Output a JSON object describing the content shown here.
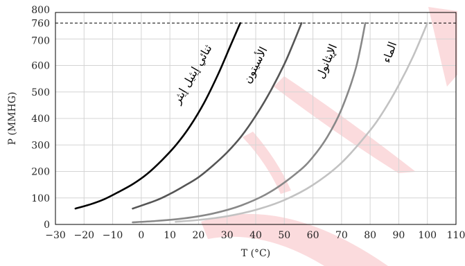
{
  "chart_data": {
    "type": "line",
    "title": "",
    "xlabel": "T (°C)",
    "ylabel": "P (MMHG)",
    "xlim": [
      -30,
      110
    ],
    "ylim": [
      0,
      800
    ],
    "x_ticks": [
      -30,
      -20,
      -10,
      0,
      10,
      20,
      30,
      40,
      50,
      60,
      70,
      80,
      90,
      100,
      110
    ],
    "y_ticks": [
      0,
      100,
      200,
      300,
      400,
      500,
      600,
      700,
      760,
      800
    ],
    "grid": true,
    "reference_line": {
      "y": 760,
      "style": "dashed"
    },
    "series": [
      {
        "name": "ثنائي إيثيل إيثر",
        "color": "#000000",
        "x": [
          -23,
          -18,
          -13,
          -8,
          -3,
          2,
          7,
          12,
          17,
          22,
          27,
          31,
          34.6
        ],
        "y": [
          60,
          75,
          95,
          122,
          152,
          190,
          240,
          298,
          370,
          460,
          570,
          670,
          760
        ]
      },
      {
        "name": "الأسيتون",
        "color": "#555555",
        "x": [
          -3,
          5,
          10,
          15,
          20,
          25,
          30,
          35,
          40,
          45,
          50,
          53,
          56
        ],
        "y": [
          60,
          90,
          115,
          145,
          178,
          222,
          272,
          333,
          410,
          500,
          605,
          680,
          760
        ]
      },
      {
        "name": "الإيثانول",
        "color": "#888888",
        "x": [
          -3,
          5,
          15,
          25,
          35,
          45,
          55,
          60,
          65,
          70,
          75,
          78.3
        ],
        "y": [
          8,
          13,
          23,
          41,
          72,
          122,
          200,
          255,
          330,
          435,
          590,
          760
        ]
      },
      {
        "name": "الماء",
        "color": "#c2c2c2",
        "x": [
          12,
          20,
          30,
          40,
          50,
          60,
          70,
          80,
          85,
          90,
          95,
          100
        ],
        "y": [
          10,
          17,
          31,
          55,
          92,
          149,
          233,
          355,
          433,
          526,
          634,
          760
        ]
      }
    ]
  },
  "watermark": {
    "color": "#e8202a"
  }
}
